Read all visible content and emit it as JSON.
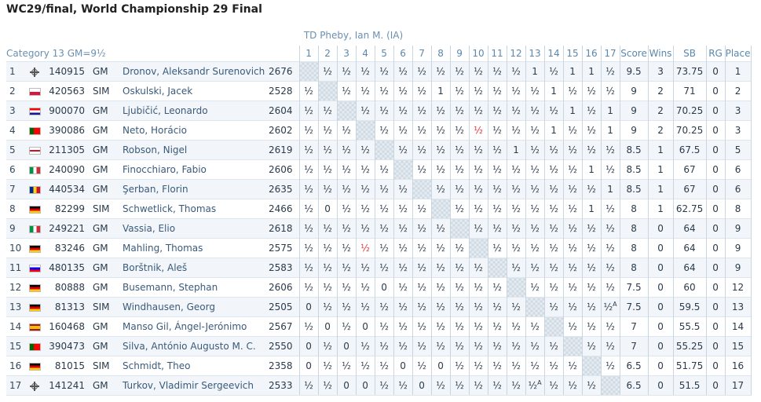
{
  "page": {
    "title": "WC29/final, World Championship 29 Final",
    "td_line": "TD Pheby, Ian M. (IA)",
    "category": "Category 13 GM=9½"
  },
  "headers": {
    "rounds": [
      "1",
      "2",
      "3",
      "4",
      "5",
      "6",
      "7",
      "8",
      "9",
      "10",
      "11",
      "12",
      "13",
      "14",
      "15",
      "16",
      "17"
    ],
    "score": "Score",
    "wins": "Wins",
    "sb": "SB",
    "rg": "RG",
    "place": "Place"
  },
  "flag_styles": {
    "fide": "fide-icon",
    "pl": "linear-gradient(#ffffff 50%,#dc143c 50%)",
    "hr": "linear-gradient(#ff0000 33%,#ffffff 33%,#ffffff 66%,#171796 66%)",
    "pt": "linear-gradient(90deg,#006600 40%,#ff0000 40%)",
    "en": "linear-gradient(#ffffff 40%,#ce1124 40%,#ce1124 60%,#ffffff 60%)",
    "it": "linear-gradient(90deg,#009246 33%,#ffffff 33%,#ffffff 66%,#ce2b37 66%)",
    "ro": "linear-gradient(90deg,#002b7f 33%,#fcd116 33%,#fcd116 66%,#ce1126 66%)",
    "de": "linear-gradient(#000000 33%,#dd0000 33%,#dd0000 66%,#ffce00 66%)",
    "si": "linear-gradient(#ffffff 33%,#0000ff 33%,#0000ff 66%,#ff0000 66%)",
    "es": "linear-gradient(#aa151b 25%,#f1bf00 25%,#f1bf00 75%,#aa151b 75%)"
  },
  "players": [
    {
      "pos": "1",
      "flag": "fide",
      "id": "140915",
      "title": "GM",
      "name": "Dronov, Aleksandr Surenovich",
      "rating": "2676",
      "results": [
        "",
        "½",
        "½",
        "½",
        "½",
        "½",
        "½",
        "½",
        "½",
        "½",
        "½",
        "½",
        "1",
        "½",
        "1",
        "1",
        "½"
      ],
      "score": "9.5",
      "wins": "3",
      "sb": "73.75",
      "rg": "0",
      "place": "1"
    },
    {
      "pos": "2",
      "flag": "pl",
      "id": "420563",
      "title": "SIM",
      "name": "Oskulski, Jacek",
      "rating": "2528",
      "results": [
        "½",
        "",
        "½",
        "½",
        "½",
        "½",
        "½",
        "1",
        "½",
        "½",
        "½",
        "½",
        "½",
        "1",
        "½",
        "½",
        "½"
      ],
      "score": "9",
      "wins": "2",
      "sb": "71",
      "rg": "0",
      "place": "2"
    },
    {
      "pos": "3",
      "flag": "hr",
      "id": "900070",
      "title": "GM",
      "name": "Ljubičić, Leonardo",
      "rating": "2604",
      "results": [
        "½",
        "½",
        "",
        "½",
        "½",
        "½",
        "½",
        "½",
        "½",
        "½",
        "½",
        "½",
        "½",
        "½",
        "1",
        "½",
        "1"
      ],
      "score": "9",
      "wins": "2",
      "sb": "70.25",
      "rg": "0",
      "place": "3"
    },
    {
      "pos": "4",
      "flag": "pt",
      "id": "390086",
      "title": "GM",
      "name": "Neto, Horácio",
      "rating": "2602",
      "results": [
        "½",
        "½",
        "½",
        "",
        "½",
        "½",
        "½",
        "½",
        "½",
        "½",
        "½",
        "½",
        "½",
        "1",
        "½",
        "½",
        "1"
      ],
      "score": "9",
      "wins": "2",
      "sb": "70.25",
      "rg": "0",
      "place": "3"
    },
    {
      "pos": "5",
      "flag": "en",
      "id": "211305",
      "title": "GM",
      "name": "Robson, Nigel",
      "rating": "2619",
      "results": [
        "½",
        "½",
        "½",
        "½",
        "",
        "½",
        "½",
        "½",
        "½",
        "½",
        "½",
        "1",
        "½",
        "½",
        "½",
        "½",
        "½"
      ],
      "score": "8.5",
      "wins": "1",
      "sb": "67.5",
      "rg": "0",
      "place": "5"
    },
    {
      "pos": "6",
      "flag": "it",
      "id": "240090",
      "title": "GM",
      "name": "Finocchiaro, Fabio",
      "rating": "2606",
      "results": [
        "½",
        "½",
        "½",
        "½",
        "½",
        "",
        "½",
        "½",
        "½",
        "½",
        "½",
        "½",
        "½",
        "½",
        "½",
        "1",
        "½"
      ],
      "score": "8.5",
      "wins": "1",
      "sb": "67",
      "rg": "0",
      "place": "6"
    },
    {
      "pos": "7",
      "flag": "ro",
      "id": "440534",
      "title": "GM",
      "name": "Şerban, Florin",
      "rating": "2635",
      "results": [
        "½",
        "½",
        "½",
        "½",
        "½",
        "½",
        "",
        "½",
        "½",
        "½",
        "½",
        "½",
        "½",
        "½",
        "½",
        "½",
        "1"
      ],
      "score": "8.5",
      "wins": "1",
      "sb": "67",
      "rg": "0",
      "place": "6"
    },
    {
      "pos": "8",
      "flag": "de",
      "id": "82299",
      "title": "SIM",
      "name": "Schwetlick, Thomas",
      "rating": "2466",
      "results": [
        "½",
        "0",
        "½",
        "½",
        "½",
        "½",
        "½",
        "",
        "½",
        "½",
        "½",
        "½",
        "½",
        "½",
        "½",
        "1",
        "½"
      ],
      "score": "8",
      "wins": "1",
      "sb": "62.75",
      "rg": "0",
      "place": "8"
    },
    {
      "pos": "9",
      "flag": "it",
      "id": "249221",
      "title": "GM",
      "name": "Vassia, Elio",
      "rating": "2618",
      "results": [
        "½",
        "½",
        "½",
        "½",
        "½",
        "½",
        "½",
        "½",
        "",
        "½",
        "½",
        "½",
        "½",
        "½",
        "½",
        "½",
        "½"
      ],
      "score": "8",
      "wins": "0",
      "sb": "64",
      "rg": "0",
      "place": "9"
    },
    {
      "pos": "10",
      "flag": "de",
      "id": "83246",
      "title": "GM",
      "name": "Mahling, Thomas",
      "rating": "2575",
      "results": [
        "½",
        "½",
        "½",
        "½",
        "½",
        "½",
        "½",
        "½",
        "½",
        "",
        "½",
        "½",
        "½",
        "½",
        "½",
        "½",
        "½"
      ],
      "score": "8",
      "wins": "0",
      "sb": "64",
      "rg": "0",
      "place": "9"
    },
    {
      "pos": "11",
      "flag": "si",
      "id": "480135",
      "title": "GM",
      "name": "Borštnik, Aleš",
      "rating": "2583",
      "results": [
        "½",
        "½",
        "½",
        "½",
        "½",
        "½",
        "½",
        "½",
        "½",
        "½",
        "",
        "½",
        "½",
        "½",
        "½",
        "½",
        "½"
      ],
      "score": "8",
      "wins": "0",
      "sb": "64",
      "rg": "0",
      "place": "9"
    },
    {
      "pos": "12",
      "flag": "de",
      "id": "80888",
      "title": "GM",
      "name": "Busemann, Stephan",
      "rating": "2606",
      "results": [
        "½",
        "½",
        "½",
        "½",
        "0",
        "½",
        "½",
        "½",
        "½",
        "½",
        "½",
        "",
        "½",
        "½",
        "½",
        "½",
        "½"
      ],
      "score": "7.5",
      "wins": "0",
      "sb": "60",
      "rg": "0",
      "place": "12"
    },
    {
      "pos": "13",
      "flag": "de",
      "id": "81313",
      "title": "SIM",
      "name": "Windhausen, Georg",
      "rating": "2505",
      "results": [
        "0",
        "½",
        "½",
        "½",
        "½",
        "½",
        "½",
        "½",
        "½",
        "½",
        "½",
        "½",
        "",
        "½",
        "½",
        "½",
        "½"
      ],
      "score": "7.5",
      "wins": "0",
      "sb": "59.5",
      "rg": "0",
      "place": "13"
    },
    {
      "pos": "14",
      "flag": "es",
      "id": "160468",
      "title": "GM",
      "name": "Manso Gil, Ángel-Jerónimo",
      "rating": "2567",
      "results": [
        "½",
        "0",
        "½",
        "0",
        "½",
        "½",
        "½",
        "½",
        "½",
        "½",
        "½",
        "½",
        "½",
        "",
        "½",
        "½",
        "½"
      ],
      "score": "7",
      "wins": "0",
      "sb": "55.5",
      "rg": "0",
      "place": "14"
    },
    {
      "pos": "15",
      "flag": "pt",
      "id": "390473",
      "title": "GM",
      "name": "Silva, António Augusto M. C.",
      "rating": "2550",
      "results": [
        "0",
        "½",
        "0",
        "½",
        "½",
        "½",
        "½",
        "½",
        "½",
        "½",
        "½",
        "½",
        "½",
        "½",
        "",
        "½",
        "½"
      ],
      "score": "7",
      "wins": "0",
      "sb": "55.25",
      "rg": "0",
      "place": "15"
    },
    {
      "pos": "16",
      "flag": "de",
      "id": "81015",
      "title": "SIM",
      "name": "Schmidt, Theo",
      "rating": "2358",
      "results": [
        "0",
        "½",
        "½",
        "½",
        "½",
        "0",
        "½",
        "0",
        "½",
        "½",
        "½",
        "½",
        "½",
        "½",
        "½",
        "",
        "½"
      ],
      "score": "6.5",
      "wins": "0",
      "sb": "51.75",
      "rg": "0",
      "place": "16"
    },
    {
      "pos": "17",
      "flag": "fide",
      "id": "141241",
      "title": "GM",
      "name": "Turkov, Vladimir Sergeevich",
      "rating": "2533",
      "results": [
        "½",
        "½",
        "0",
        "0",
        "½",
        "½",
        "0",
        "½",
        "½",
        "½",
        "½",
        "½",
        "½",
        "½",
        "½",
        "½",
        ""
      ],
      "score": "6.5",
      "wins": "0",
      "sb": "51.5",
      "rg": "0",
      "place": "17"
    }
  ],
  "special_cells": [
    {
      "row": 4,
      "col": 10,
      "style": "red"
    },
    {
      "row": 10,
      "col": 4,
      "style": "red"
    },
    {
      "row": 13,
      "col": 17,
      "sup": "A"
    },
    {
      "row": 17,
      "col": 13,
      "sup": "A"
    }
  ]
}
